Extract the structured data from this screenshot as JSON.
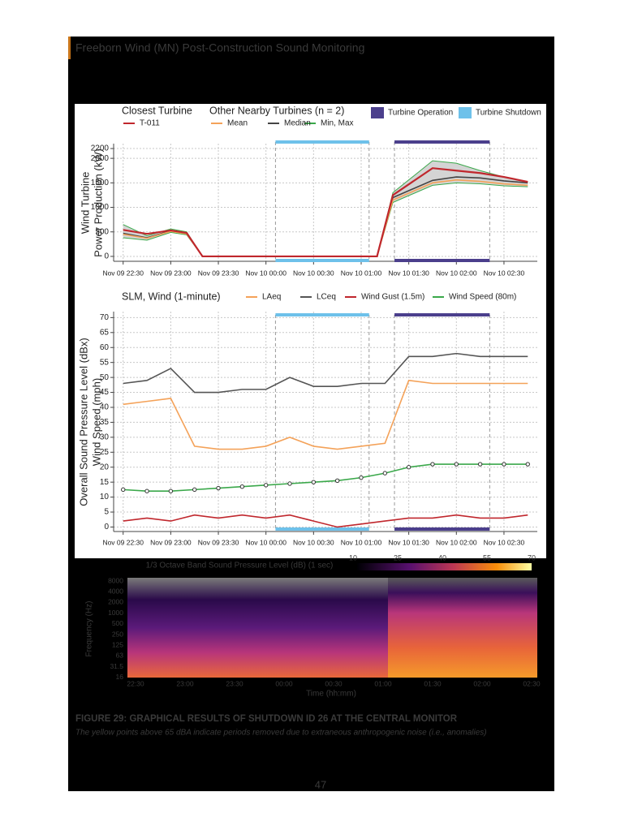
{
  "header": {
    "title": "Freeborn Wind (MN) Post-Construction Sound Monitoring"
  },
  "chart_data": [
    {
      "type": "line",
      "ylabel": [
        "Wind Turbine",
        "Power Production (kW)"
      ],
      "legend_titles": [
        "Closest Turbine",
        "Other Nearby Turbines (n = 2)"
      ],
      "x": [
        "Nov 09 22:30",
        "Nov 09 22:45",
        "Nov 09 23:00",
        "Nov 09 23:10",
        "Nov 09 23:20",
        "Nov 10 00:00",
        "Nov 10 00:30",
        "Nov 10 01:00",
        "Nov 10 01:10",
        "Nov 10 01:20",
        "Nov 10 01:45",
        "Nov 10 02:00",
        "Nov 10 02:15",
        "Nov 10 02:30",
        "Nov 10 02:45"
      ],
      "series": [
        {
          "name": "Min, Max",
          "color": "#3aa84a",
          "band_color": "#d4d4d4",
          "lower": [
            380,
            330,
            490,
            440,
            0,
            0,
            0,
            0,
            0,
            1100,
            1450,
            1500,
            1480,
            1440,
            1420
          ],
          "upper": [
            650,
            420,
            560,
            500,
            0,
            0,
            0,
            0,
            0,
            1300,
            1950,
            1900,
            1750,
            1620,
            1520
          ]
        },
        {
          "name": "Median",
          "color": "#444444",
          "values": [
            470,
            380,
            520,
            470,
            0,
            0,
            0,
            0,
            0,
            1200,
            1550,
            1620,
            1600,
            1540,
            1500
          ]
        },
        {
          "name": "Mean",
          "color": "#f4a259",
          "values": [
            450,
            370,
            510,
            460,
            0,
            0,
            0,
            0,
            0,
            1150,
            1500,
            1560,
            1530,
            1480,
            1450
          ]
        },
        {
          "name": "T-011",
          "color": "#c0272d",
          "values": [
            540,
            460,
            530,
            480,
            0,
            0,
            0,
            0,
            0,
            1250,
            1800,
            1750,
            1700,
            1620,
            1520
          ]
        }
      ],
      "periods": [
        {
          "name": "Turbine Operation",
          "color": "#4b3f8c",
          "start": "Nov 10 01:21",
          "end": "Nov 10 02:21"
        },
        {
          "name": "Turbine Shutdown",
          "color": "#6ec1ea",
          "start": "Nov 10 00:06",
          "end": "Nov 10 01:05"
        }
      ],
      "xlim": [
        "Nov 09 22:24",
        "Nov 10 02:51"
      ],
      "xticks": [
        "Nov 09 22:30",
        "Nov 09 23:00",
        "Nov 09 23:30",
        "Nov 10 00:00",
        "Nov 10 00:30",
        "Nov 10 01:00",
        "Nov 10 01:30",
        "Nov 10 02:00",
        "Nov 10 02:30"
      ],
      "ylim": [
        -100,
        2300
      ],
      "yticks": [
        0,
        500,
        1000,
        1500,
        2000,
        2200
      ],
      "grid": true
    },
    {
      "type": "line",
      "ylabel": [
        "Overall Sound Pressure Level (dBx)",
        "Wind Speed (mph)"
      ],
      "legend_titles": [
        "SLM, Wind (1-minute)"
      ],
      "x": [
        "Nov 09 22:30",
        "Nov 09 22:45",
        "Nov 09 23:00",
        "Nov 09 23:15",
        "Nov 09 23:30",
        "Nov 09 23:45",
        "Nov 10 00:00",
        "Nov 10 00:15",
        "Nov 10 00:30",
        "Nov 10 00:45",
        "Nov 10 01:00",
        "Nov 10 01:15",
        "Nov 10 01:30",
        "Nov 10 01:45",
        "Nov 10 02:00",
        "Nov 10 02:15",
        "Nov 10 02:30",
        "Nov 10 02:45"
      ],
      "series": [
        {
          "name": "LAeq",
          "color": "#f4a259",
          "values": [
            41,
            42,
            43,
            27,
            26,
            26,
            27,
            30,
            27,
            26,
            27,
            28,
            49,
            48,
            48,
            48,
            48,
            48
          ]
        },
        {
          "name": "LCeq",
          "color": "#555555",
          "values": [
            48,
            49,
            53,
            45,
            45,
            46,
            46,
            50,
            47,
            47,
            48,
            48,
            57,
            57,
            58,
            57,
            57,
            57
          ]
        },
        {
          "name": "Wind Gust (1.5m)",
          "color": "#c0272d",
          "values": [
            2,
            3,
            2,
            4,
            3,
            4,
            3,
            4,
            2,
            0,
            1,
            2,
            3,
            3,
            4,
            3,
            3,
            4
          ]
        },
        {
          "name": "Wind Speed (80m)",
          "color": "#3aa84a",
          "values": [
            12.5,
            12,
            12,
            12.5,
            13,
            13.5,
            14,
            14.5,
            15,
            15.5,
            16.5,
            18,
            20,
            21,
            21,
            21,
            21,
            21
          ]
        }
      ],
      "periods": [
        {
          "color": "#4b3f8c",
          "start": "Nov 10 01:21",
          "end": "Nov 10 02:21"
        },
        {
          "color": "#6ec1ea",
          "start": "Nov 10 00:06",
          "end": "Nov 10 01:05"
        }
      ],
      "xlim": [
        "Nov 09 22:24",
        "Nov 10 02:51"
      ],
      "xticks": [
        "Nov 09 22:30",
        "Nov 09 23:00",
        "Nov 09 23:30",
        "Nov 10 00:00",
        "Nov 10 00:30",
        "Nov 10 01:00",
        "Nov 10 01:30",
        "Nov 10 02:00",
        "Nov 10 02:30"
      ],
      "ylim": [
        -1.5,
        72
      ],
      "yticks": [
        0,
        5,
        10,
        15,
        20,
        25,
        30,
        35,
        40,
        45,
        50,
        55,
        60,
        65,
        70
      ],
      "grid": true
    }
  ],
  "spectrogram": {
    "title": "1/3 Octave Band Sound Pressure Level (dB) (1 sec)",
    "colorbar_ticks": [
      10,
      25,
      40,
      55,
      70
    ],
    "ylabel": "Frequency (Hz)",
    "xlabel": "Time (hh:mm)",
    "yticks": [
      "8000",
      "4000",
      "2000",
      "1000",
      "500",
      "250",
      "125",
      "63",
      "31.5",
      "16"
    ],
    "xticks": [
      "22:30",
      "23:00",
      "23:30",
      "00:00",
      "00:30",
      "01:00",
      "01:30",
      "02:00",
      "02:30"
    ]
  },
  "caption": {
    "figure": "FIGURE 29: GRAPHICAL RESULTS OF SHUTDOWN ID 26 AT THE CENTRAL MONITOR",
    "note": "The yellow points above 65 dBA indicate periods removed due to extraneous anthropogenic noise (i.e., anomalies)"
  },
  "page_number": "47"
}
